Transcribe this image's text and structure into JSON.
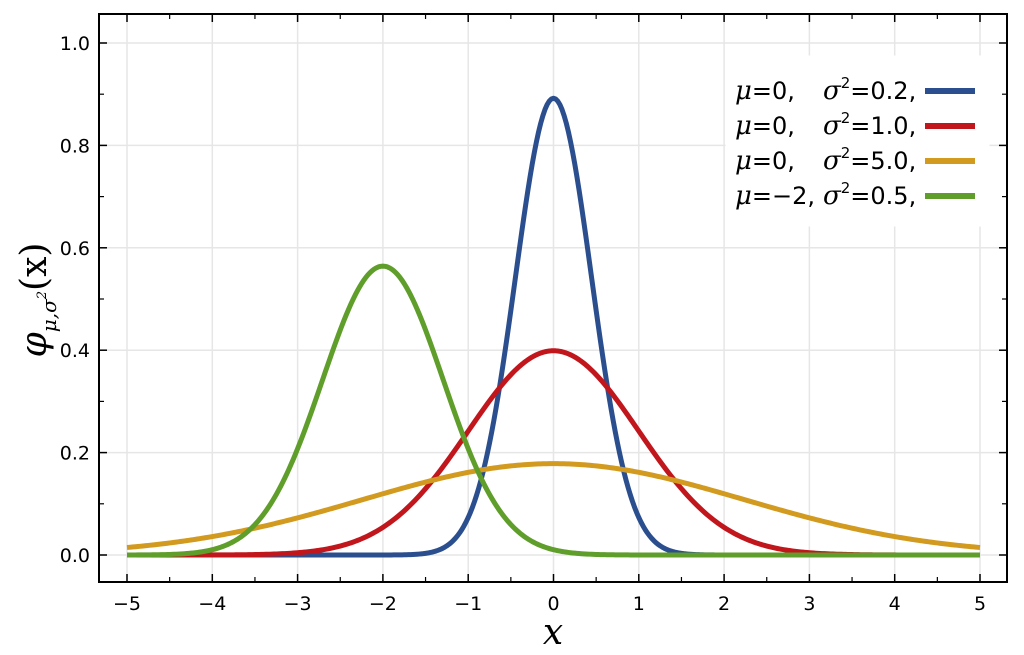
{
  "chart_data": {
    "type": "line",
    "title": "",
    "xlabel": "x",
    "ylabel": {
      "base": "φ",
      "subscript": "μ,σ",
      "sub_sup": "2",
      "arg": "(x)"
    },
    "xlim": [
      -5,
      5
    ],
    "ylim": [
      0,
      1.05
    ],
    "grid": true,
    "legend_position": "top-right",
    "x_ticks": [
      {
        "value": -5,
        "label": "−5"
      },
      {
        "value": -4,
        "label": "−4"
      },
      {
        "value": -3,
        "label": "−3"
      },
      {
        "value": -2,
        "label": "−2"
      },
      {
        "value": -1,
        "label": "−1"
      },
      {
        "value": 0,
        "label": "0"
      },
      {
        "value": 1,
        "label": "1"
      },
      {
        "value": 2,
        "label": "2"
      },
      {
        "value": 3,
        "label": "3"
      },
      {
        "value": 4,
        "label": "4"
      },
      {
        "value": 5,
        "label": "5"
      }
    ],
    "y_ticks": [
      {
        "value": 0,
        "label": "0.0"
      },
      {
        "value": 0.2,
        "label": "0.2"
      },
      {
        "value": 0.4,
        "label": "0.4"
      },
      {
        "value": 0.6,
        "label": "0.6"
      },
      {
        "value": 0.8,
        "label": "0.8"
      },
      {
        "value": 1.0,
        "label": "1.0"
      }
    ],
    "series": [
      {
        "mu": 0,
        "sigma2": 0.2,
        "color": "#2b4f8e",
        "legend": {
          "mu_text": "=0,",
          "sigma_text": "=0.2,"
        }
      },
      {
        "mu": 0,
        "sigma2": 1.0,
        "color": "#c0161c",
        "legend": {
          "mu_text": "=0,",
          "sigma_text": "=1.0,"
        }
      },
      {
        "mu": 0,
        "sigma2": 5.0,
        "color": "#d29a1f",
        "legend": {
          "mu_text": "=0,",
          "sigma_text": "=5.0,"
        }
      },
      {
        "mu": -2,
        "sigma2": 0.5,
        "color": "#5f9e2a",
        "legend": {
          "mu_text": "=−2,",
          "sigma_text": "=0.5,"
        }
      }
    ],
    "legend_symbols": {
      "mu": "μ",
      "sigma": "σ",
      "squared": "2"
    }
  }
}
